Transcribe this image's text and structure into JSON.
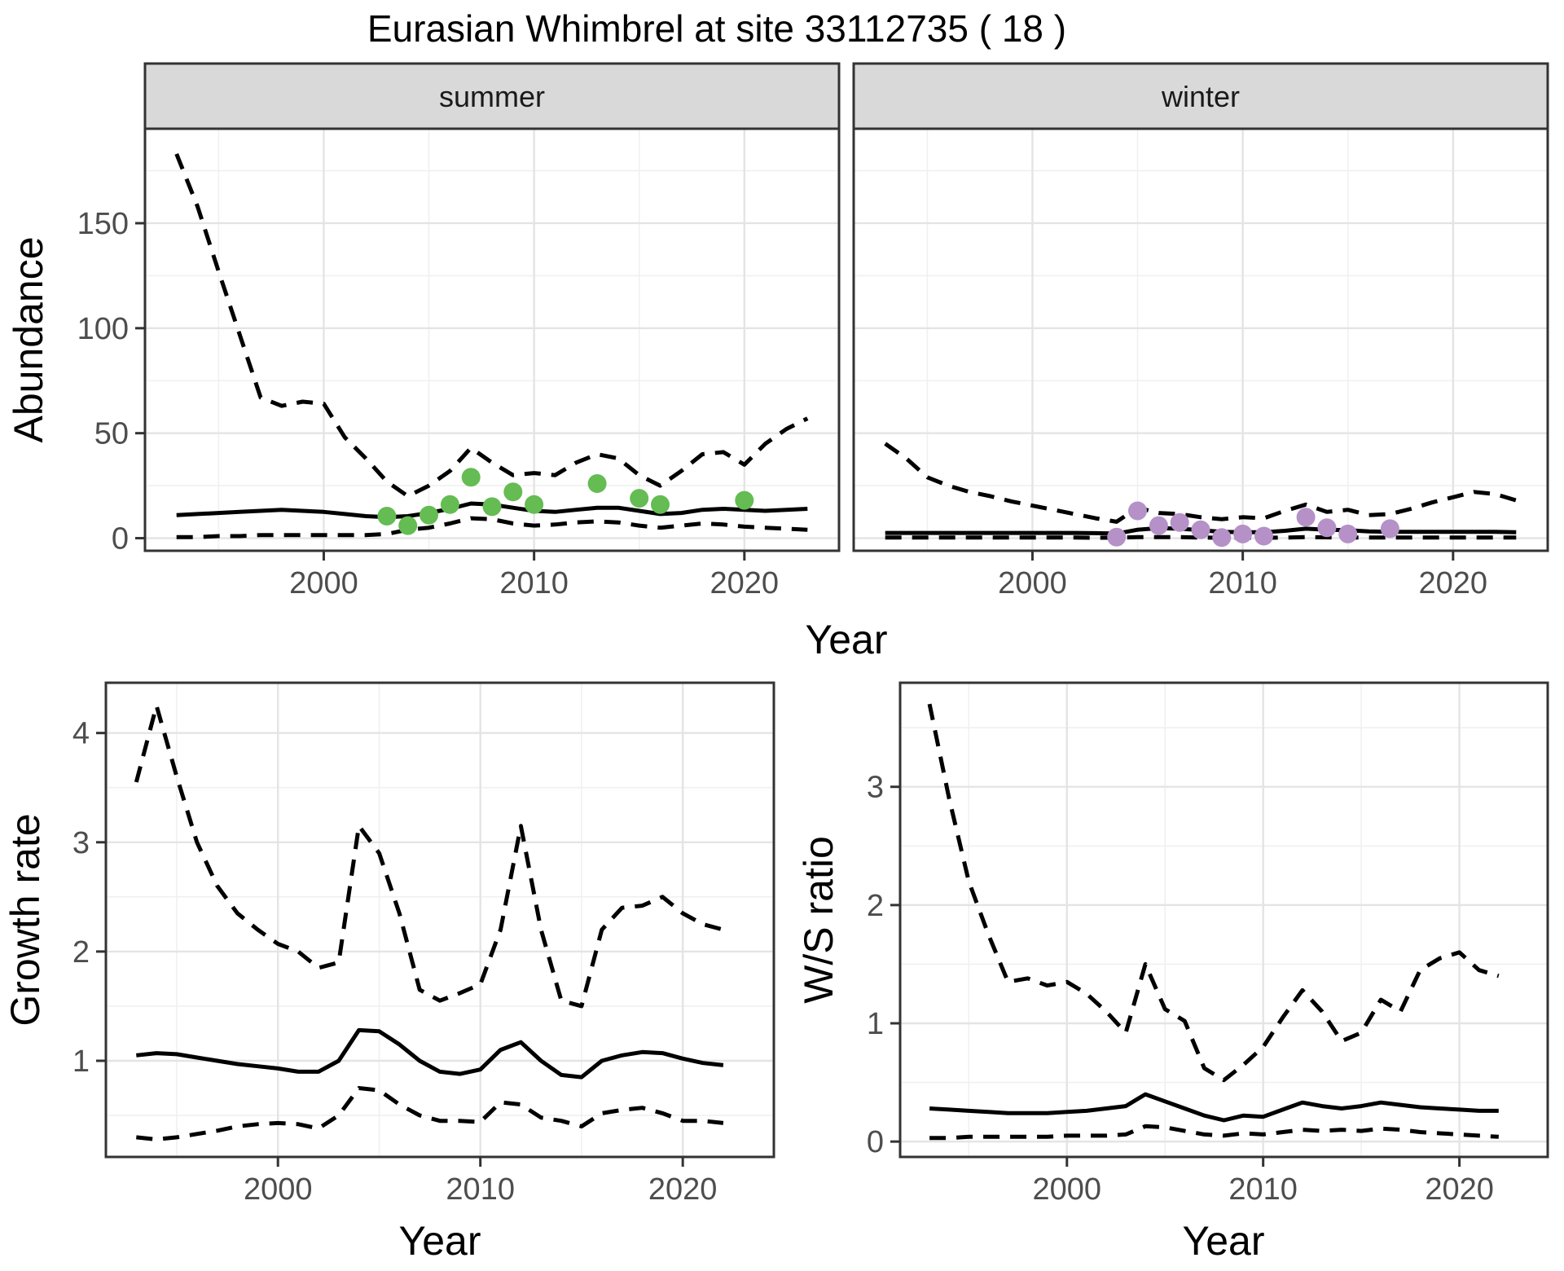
{
  "title": "Eurasian Whimbrel at site 33112735 ( 18 )",
  "axes": {
    "x_title": "Year",
    "y_title_abundance": "Abundance",
    "y_title_growth": "Growth rate",
    "y_title_ws": "W/S ratio"
  },
  "facets": {
    "summer": "summer",
    "winter": "winter"
  },
  "colors": {
    "summer_points": "#64BC53",
    "winter_points": "#B591C8",
    "line": "#000000",
    "grid_major": "#E4E4E4",
    "grid_minor": "#F0F0F0",
    "panel_border": "#333333",
    "strip_fill": "#D9D9D9",
    "strip_text": "#1A1A1A",
    "tick_label": "#4D4D4D",
    "panel_bg": "#FFFFFF"
  },
  "chart_data": [
    {
      "id": "abundance-summer",
      "type": "line",
      "facet_label": "summer",
      "xlabel": "Year",
      "ylabel": "Abundance",
      "xlim": [
        1991.5,
        2024.5
      ],
      "ylim": [
        -6,
        195
      ],
      "x_ticks": [
        2000,
        2010,
        2020
      ],
      "x_minor": [
        1995,
        2005,
        2015
      ],
      "y_ticks": [
        0,
        50,
        100,
        150
      ],
      "y_minor": [
        25,
        75,
        125,
        175
      ],
      "show_y_labels": true,
      "grid": true,
      "x": [
        1993,
        1994,
        1995,
        1996,
        1997,
        1998,
        1999,
        2000,
        2001,
        2002,
        2003,
        2004,
        2005,
        2006,
        2007,
        2008,
        2009,
        2010,
        2011,
        2012,
        2013,
        2014,
        2015,
        2016,
        2017,
        2018,
        2019,
        2020,
        2021,
        2022,
        2023
      ],
      "series": [
        {
          "name": "upper-95ci",
          "style": "dashed",
          "values": [
            183,
            158,
            127,
            97,
            67,
            63,
            65,
            64,
            48,
            38,
            27,
            20,
            25,
            32,
            43,
            36,
            30,
            31,
            30,
            36,
            40,
            38,
            30,
            25,
            32,
            40,
            41,
            35,
            45,
            52,
            57
          ]
        },
        {
          "name": "median",
          "style": "solid",
          "values": [
            11,
            11.5,
            12,
            12.5,
            13,
            13.5,
            13,
            12.5,
            11.5,
            10.5,
            10,
            10.5,
            12,
            14,
            16.5,
            16,
            14.5,
            13,
            12.5,
            13.5,
            14.5,
            14.5,
            13,
            11.5,
            12,
            13.5,
            14,
            13.5,
            13,
            13.5,
            14
          ]
        },
        {
          "name": "lower-95ci",
          "style": "dashed",
          "values": [
            0.5,
            0.5,
            1,
            1,
            1.5,
            1.5,
            1.5,
            1.5,
            1.5,
            1.5,
            2,
            4,
            5,
            7,
            9.5,
            9,
            7,
            6,
            6.5,
            7.5,
            8,
            7.5,
            6,
            5,
            6,
            7,
            6.5,
            5.5,
            5,
            4.5,
            4
          ]
        }
      ],
      "points": {
        "name": "observed-counts-summer",
        "color_key": "summer_points",
        "x": [
          2003,
          2004,
          2005,
          2006,
          2007,
          2008,
          2009,
          2010,
          2013,
          2015,
          2016,
          2020
        ],
        "values": [
          10.5,
          6,
          11,
          16,
          29,
          15,
          22,
          16,
          26,
          19,
          16,
          18
        ]
      }
    },
    {
      "id": "abundance-winter",
      "type": "line",
      "facet_label": "winter",
      "xlabel": "Year",
      "ylabel": "Abundance",
      "xlim": [
        1991.5,
        2024.5
      ],
      "ylim": [
        -6,
        195
      ],
      "x_ticks": [
        2000,
        2010,
        2020
      ],
      "x_minor": [
        1995,
        2005,
        2015
      ],
      "y_ticks": [
        0,
        50,
        100,
        150
      ],
      "y_minor": [
        25,
        75,
        125,
        175
      ],
      "show_y_labels": false,
      "grid": true,
      "x": [
        1993,
        1994,
        1995,
        1996,
        1997,
        1998,
        1999,
        2000,
        2001,
        2002,
        2003,
        2004,
        2005,
        2006,
        2007,
        2008,
        2009,
        2010,
        2011,
        2012,
        2013,
        2014,
        2015,
        2016,
        2017,
        2018,
        2019,
        2020,
        2021,
        2022,
        2023
      ],
      "series": [
        {
          "name": "upper-95ci",
          "style": "dashed",
          "values": [
            45,
            38,
            29,
            25,
            22,
            20,
            17.5,
            15.5,
            13.5,
            11.5,
            9.5,
            7.8,
            14.5,
            12,
            11.5,
            10,
            9,
            10,
            9.5,
            13,
            16,
            12.5,
            13.5,
            11,
            11.5,
            14,
            17,
            19.5,
            22,
            21,
            18
          ]
        },
        {
          "name": "median",
          "style": "solid",
          "values": [
            2.5,
            2.5,
            2.5,
            2.5,
            2.5,
            2.5,
            2.5,
            2.5,
            2.5,
            2.5,
            2.4,
            2.2,
            4,
            4.8,
            4.5,
            3.8,
            3,
            2.8,
            2.8,
            3.5,
            4.5,
            4,
            3.8,
            3.2,
            3,
            3,
            3,
            3,
            3,
            3,
            2.8
          ]
        },
        {
          "name": "lower-95ci",
          "style": "dashed",
          "values": [
            0.3,
            0.3,
            0.3,
            0.3,
            0.3,
            0.3,
            0.3,
            0.3,
            0.3,
            0.3,
            0.2,
            0.2,
            0.5,
            0.5,
            0.5,
            0.3,
            0.2,
            0.2,
            0.2,
            0.3,
            0.5,
            0.4,
            0.3,
            0.3,
            0.3,
            0.3,
            0.3,
            0.3,
            0.3,
            0.3,
            0.3
          ]
        }
      ],
      "points": {
        "name": "observed-counts-winter",
        "color_key": "winter_points",
        "x": [
          2004,
          2005,
          2006,
          2007,
          2008,
          2009,
          2010,
          2011,
          2013,
          2014,
          2015,
          2017
        ],
        "values": [
          0.5,
          13,
          6,
          7.5,
          4,
          0.3,
          2,
          1,
          10,
          5,
          2,
          4.5
        ]
      }
    },
    {
      "id": "growth-rate",
      "type": "line",
      "facet_label": null,
      "xlabel": "Year",
      "ylabel": "Growth rate",
      "xlim": [
        1991.5,
        2024.5
      ],
      "ylim": [
        0.12,
        4.46
      ],
      "x_ticks": [
        2000,
        2010,
        2020
      ],
      "x_minor": [
        1995,
        2005,
        2015
      ],
      "y_ticks": [
        1,
        2,
        3,
        4
      ],
      "y_minor": [
        0.5,
        1.5,
        2.5,
        3.5
      ],
      "show_y_labels": true,
      "grid": true,
      "x": [
        1993,
        1994,
        1995,
        1996,
        1997,
        1998,
        1999,
        2000,
        2001,
        2002,
        2003,
        2004,
        2005,
        2006,
        2007,
        2008,
        2009,
        2010,
        2011,
        2012,
        2013,
        2014,
        2015,
        2016,
        2017,
        2018,
        2019,
        2020,
        2021,
        2022
      ],
      "series": [
        {
          "name": "upper-95ci",
          "style": "dashed",
          "values": [
            3.55,
            4.25,
            3.6,
            3.0,
            2.6,
            2.35,
            2.2,
            2.07,
            2.0,
            1.85,
            1.9,
            3.15,
            2.9,
            2.35,
            1.65,
            1.55,
            1.62,
            1.7,
            2.2,
            3.15,
            2.2,
            1.55,
            1.5,
            2.2,
            2.4,
            2.42,
            2.5,
            2.35,
            2.25,
            2.2
          ]
        },
        {
          "name": "median",
          "style": "solid",
          "values": [
            1.05,
            1.07,
            1.06,
            1.03,
            1.0,
            0.97,
            0.95,
            0.93,
            0.9,
            0.9,
            1.0,
            1.28,
            1.27,
            1.15,
            1.0,
            0.9,
            0.88,
            0.92,
            1.1,
            1.17,
            1.0,
            0.87,
            0.85,
            1.0,
            1.05,
            1.08,
            1.07,
            1.02,
            0.98,
            0.96
          ]
        },
        {
          "name": "lower-95ci",
          "style": "dashed",
          "values": [
            0.3,
            0.28,
            0.3,
            0.33,
            0.36,
            0.4,
            0.42,
            0.43,
            0.42,
            0.38,
            0.5,
            0.75,
            0.73,
            0.6,
            0.5,
            0.45,
            0.45,
            0.44,
            0.62,
            0.6,
            0.48,
            0.45,
            0.4,
            0.52,
            0.55,
            0.57,
            0.52,
            0.45,
            0.45,
            0.43
          ]
        }
      ],
      "points": null
    },
    {
      "id": "ws-ratio",
      "type": "line",
      "facet_label": null,
      "xlabel": "Year",
      "ylabel": "W/S ratio",
      "xlim": [
        1991.5,
        2024.5
      ],
      "ylim": [
        -0.13,
        3.88
      ],
      "x_ticks": [
        2000,
        2010,
        2020
      ],
      "x_minor": [
        1995,
        2005,
        2015
      ],
      "y_ticks": [
        0,
        1,
        2,
        3
      ],
      "y_minor": [
        0.5,
        1.5,
        2.5,
        3.5
      ],
      "show_y_labels": true,
      "grid": true,
      "x": [
        1993,
        1994,
        1995,
        1996,
        1997,
        1998,
        1999,
        2000,
        2001,
        2002,
        2003,
        2004,
        2005,
        2006,
        2007,
        2008,
        2009,
        2010,
        2011,
        2012,
        2013,
        2014,
        2015,
        2016,
        2017,
        2018,
        2019,
        2020,
        2021,
        2022
      ],
      "series": [
        {
          "name": "upper-95ci",
          "style": "dashed",
          "values": [
            3.7,
            2.9,
            2.2,
            1.75,
            1.35,
            1.38,
            1.32,
            1.35,
            1.25,
            1.1,
            0.92,
            1.5,
            1.12,
            1.02,
            0.62,
            0.52,
            0.65,
            0.8,
            1.05,
            1.28,
            1.1,
            0.85,
            0.92,
            1.2,
            1.1,
            1.45,
            1.55,
            1.6,
            1.45,
            1.4
          ]
        },
        {
          "name": "median",
          "style": "solid",
          "values": [
            0.28,
            0.27,
            0.26,
            0.25,
            0.24,
            0.24,
            0.24,
            0.25,
            0.26,
            0.28,
            0.3,
            0.4,
            0.34,
            0.28,
            0.22,
            0.18,
            0.22,
            0.21,
            0.27,
            0.33,
            0.3,
            0.28,
            0.3,
            0.33,
            0.31,
            0.29,
            0.28,
            0.27,
            0.26,
            0.26
          ]
        },
        {
          "name": "lower-95ci",
          "style": "dashed",
          "values": [
            0.03,
            0.03,
            0.04,
            0.04,
            0.04,
            0.04,
            0.04,
            0.05,
            0.05,
            0.05,
            0.06,
            0.13,
            0.12,
            0.09,
            0.06,
            0.05,
            0.07,
            0.06,
            0.08,
            0.1,
            0.09,
            0.1,
            0.09,
            0.11,
            0.1,
            0.08,
            0.07,
            0.06,
            0.05,
            0.04
          ]
        }
      ],
      "points": null
    }
  ]
}
